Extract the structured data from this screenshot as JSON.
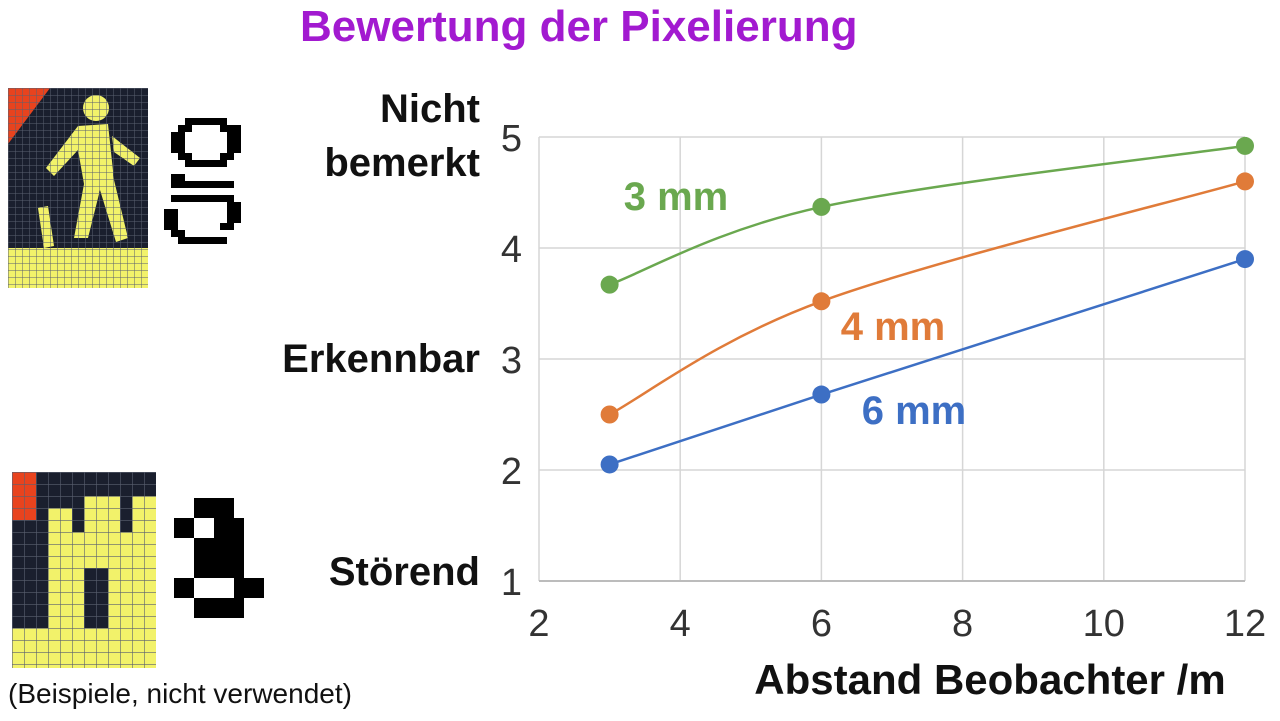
{
  "header": {
    "title": "Bewertung  der Pixelierung"
  },
  "rating_labels": [
    {
      "name": "nicht-bemerkt",
      "line1": "Nicht",
      "line2": "bemerkt"
    },
    {
      "name": "erkennbar",
      "line1": "Erkennbar"
    },
    {
      "name": "stoerend",
      "line1": "Störend"
    }
  ],
  "caption": "(Beispiele, nicht verwendet)",
  "colors": {
    "title": "#a21ad0",
    "series_3mm": "#6aa84f",
    "series_4mm": "#e07b39",
    "series_6mm": "#3d6fc4",
    "pixel_yellow": "#f2f26a",
    "pixel_red": "#e8431e",
    "pixel_dark": "#1a1f2e"
  },
  "icons": [
    "pedestrian-pixel-icon-fine",
    "letter-g-pixel-icon",
    "pedestrian-pixel-icon-coarse",
    "letter-g-coarse-pixel-icon"
  ],
  "chart_data": {
    "type": "line",
    "title": "",
    "xlabel": "Abstand Beobachter /m",
    "ylabel": "",
    "xlim": [
      2,
      12
    ],
    "ylim": [
      1,
      5
    ],
    "xticks": [
      2,
      4,
      6,
      8,
      10,
      12
    ],
    "yticks": [
      1,
      2,
      3,
      4,
      5
    ],
    "grid": true,
    "series": [
      {
        "name": "3 mm",
        "x": [
          3,
          6,
          12
        ],
        "y": [
          3.67,
          4.37,
          4.92
        ]
      },
      {
        "name": "4 mm",
        "x": [
          3,
          6,
          12
        ],
        "y": [
          2.5,
          3.52,
          4.6
        ]
      },
      {
        "name": "6 mm",
        "x": [
          3,
          6,
          12
        ],
        "y": [
          2.05,
          2.68,
          3.9
        ]
      }
    ]
  }
}
